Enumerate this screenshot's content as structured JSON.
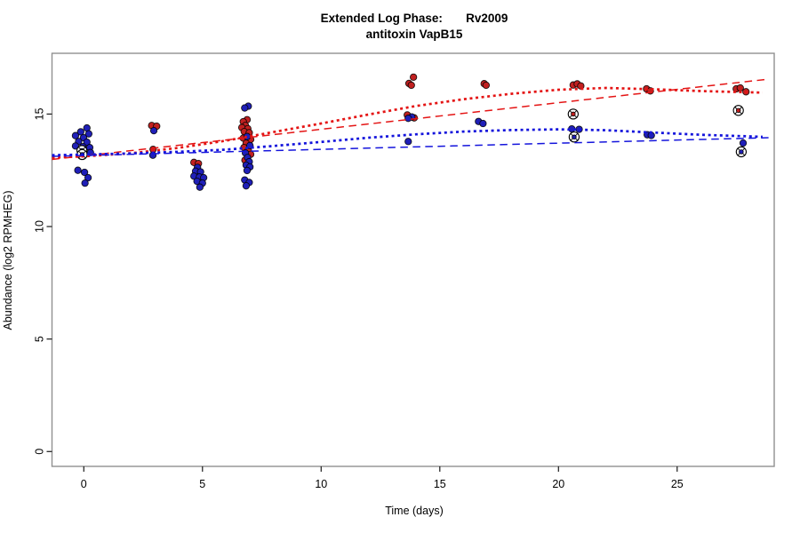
{
  "window": {
    "background": "#ffffff"
  },
  "chart_data": {
    "type": "scatter",
    "title": "Extended Log Phase:       Rv2009",
    "subtitle": "antitoxin VapB15",
    "xlabel": "Time  (days)",
    "ylabel": "Abundance  (log2 RPMHEG)",
    "xlim": [
      -1.34,
      29.09
    ],
    "ylim": [
      -0.66,
      17.7
    ],
    "xticks": [
      0,
      5,
      10,
      15,
      20,
      25
    ],
    "yticks": [
      0,
      5,
      10,
      15
    ],
    "grid": false,
    "legend": "none",
    "colors": {
      "red_point": "#c12020",
      "blue_point": "#1f1fb8",
      "red_line": "#e41414",
      "blue_line": "#1414dc",
      "box": "#909090",
      "tick": "#1a1a1a",
      "text": "#000000"
    },
    "series": [
      {
        "name": "red-points",
        "marker": "filled-circle",
        "color": "#c12020",
        "points": [
          [
            2.86,
            14.49
          ],
          [
            3.07,
            14.46
          ],
          [
            2.92,
            13.43
          ],
          [
            4.64,
            12.85
          ],
          [
            4.83,
            12.8
          ],
          [
            6.88,
            14.75
          ],
          [
            6.72,
            14.66
          ],
          [
            6.81,
            14.49
          ],
          [
            6.66,
            14.4
          ],
          [
            6.91,
            14.35
          ],
          [
            6.76,
            14.22
          ],
          [
            6.97,
            14.17
          ],
          [
            6.72,
            13.93
          ],
          [
            7.03,
            13.87
          ],
          [
            6.84,
            13.7
          ],
          [
            6.75,
            13.51
          ],
          [
            6.93,
            13.38
          ],
          [
            7.03,
            13.21
          ],
          [
            6.79,
            12.95
          ],
          [
            13.89,
            16.64
          ],
          [
            13.7,
            16.36
          ],
          [
            13.8,
            16.28
          ],
          [
            13.63,
            14.96
          ],
          [
            13.92,
            14.83
          ],
          [
            16.87,
            16.35
          ],
          [
            16.95,
            16.28
          ],
          [
            20.62,
            16.29
          ],
          [
            20.79,
            16.34
          ],
          [
            20.94,
            16.25
          ],
          [
            23.71,
            16.12
          ],
          [
            23.87,
            16.03
          ],
          [
            27.49,
            16.12
          ],
          [
            27.66,
            16.16
          ],
          [
            27.9,
            15.99
          ]
        ]
      },
      {
        "name": "blue-points",
        "marker": "filled-circle",
        "color": "#1f1fb8",
        "points": [
          [
            0.13,
            14.38
          ],
          [
            -0.13,
            14.21
          ],
          [
            0.21,
            14.12
          ],
          [
            -0.35,
            14.04
          ],
          [
            -0.01,
            13.95
          ],
          [
            -0.22,
            13.78
          ],
          [
            0.13,
            13.75
          ],
          [
            -0.35,
            13.58
          ],
          [
            -0.04,
            13.55
          ],
          [
            0.25,
            13.51
          ],
          [
            0.28,
            13.29
          ],
          [
            -0.25,
            12.5
          ],
          [
            0.03,
            12.41
          ],
          [
            0.18,
            12.17
          ],
          [
            0.05,
            11.93
          ],
          [
            2.95,
            14.26
          ],
          [
            2.91,
            13.17
          ],
          [
            4.79,
            12.63
          ],
          [
            4.71,
            12.46
          ],
          [
            4.92,
            12.43
          ],
          [
            4.64,
            12.24
          ],
          [
            4.87,
            12.2
          ],
          [
            5.05,
            12.17
          ],
          [
            4.77,
            12.01
          ],
          [
            5.0,
            11.93
          ],
          [
            4.89,
            11.75
          ],
          [
            6.93,
            15.35
          ],
          [
            6.78,
            15.27
          ],
          [
            6.88,
            14.0
          ],
          [
            7.0,
            13.6
          ],
          [
            6.81,
            13.27
          ],
          [
            6.9,
            13.07
          ],
          [
            6.97,
            12.88
          ],
          [
            6.84,
            12.73
          ],
          [
            7.0,
            12.65
          ],
          [
            6.88,
            12.49
          ],
          [
            6.78,
            12.07
          ],
          [
            6.97,
            11.96
          ],
          [
            6.84,
            11.81
          ],
          [
            13.82,
            14.87
          ],
          [
            13.67,
            14.81
          ],
          [
            13.67,
            13.78
          ],
          [
            16.63,
            14.67
          ],
          [
            16.82,
            14.58
          ],
          [
            20.56,
            14.34
          ],
          [
            20.87,
            14.32
          ],
          [
            23.74,
            14.08
          ],
          [
            23.91,
            14.05
          ],
          [
            27.78,
            13.71
          ]
        ]
      },
      {
        "name": "red-circled-points",
        "marker": "circle-cross-dot",
        "color": "#c12020",
        "points": [
          [
            20.62,
            15.0
          ],
          [
            27.58,
            15.16
          ]
        ]
      },
      {
        "name": "blue-circled-points",
        "marker": "circle-cross-dot",
        "color": "#1f1fb8",
        "points": [
          [
            -0.08,
            13.38
          ],
          [
            -0.07,
            13.2
          ],
          [
            20.66,
            13.98
          ],
          [
            27.7,
            13.32
          ]
        ]
      }
    ],
    "lines": [
      {
        "name": "red-loess-dotted",
        "color": "#e41414",
        "width": 2.7,
        "dash": "3,3.6",
        "points": [
          [
            -1.34,
            13.06
          ],
          [
            0,
            13.12
          ],
          [
            2,
            13.26
          ],
          [
            4,
            13.5
          ],
          [
            6,
            13.82
          ],
          [
            8,
            14.2
          ],
          [
            10,
            14.58
          ],
          [
            12,
            14.98
          ],
          [
            14,
            15.36
          ],
          [
            16,
            15.66
          ],
          [
            18,
            15.9
          ],
          [
            20,
            16.08
          ],
          [
            22,
            16.16
          ],
          [
            24,
            16.1
          ],
          [
            26,
            16.02
          ],
          [
            28.6,
            15.95
          ]
        ]
      },
      {
        "name": "red-linear-dashed",
        "color": "#e41414",
        "width": 1.5,
        "dash": "8.5,5.5",
        "points": [
          [
            -1.34,
            12.98
          ],
          [
            28.85,
            16.55
          ]
        ]
      },
      {
        "name": "blue-loess-dotted",
        "color": "#1414dc",
        "width": 2.7,
        "dash": "3,3.6",
        "points": [
          [
            -1.34,
            13.17
          ],
          [
            0,
            13.2
          ],
          [
            2,
            13.25
          ],
          [
            4,
            13.32
          ],
          [
            6,
            13.42
          ],
          [
            8,
            13.58
          ],
          [
            10,
            13.76
          ],
          [
            12,
            13.95
          ],
          [
            14,
            14.1
          ],
          [
            16,
            14.22
          ],
          [
            18,
            14.29
          ],
          [
            20,
            14.32
          ],
          [
            22,
            14.28
          ],
          [
            24,
            14.18
          ],
          [
            26,
            14.08
          ],
          [
            28.6,
            13.99
          ]
        ]
      },
      {
        "name": "blue-linear-dashed",
        "color": "#1414dc",
        "width": 1.5,
        "dash": "8.5,5.5",
        "points": [
          [
            -1.34,
            13.12
          ],
          [
            28.85,
            13.95
          ]
        ]
      }
    ]
  }
}
